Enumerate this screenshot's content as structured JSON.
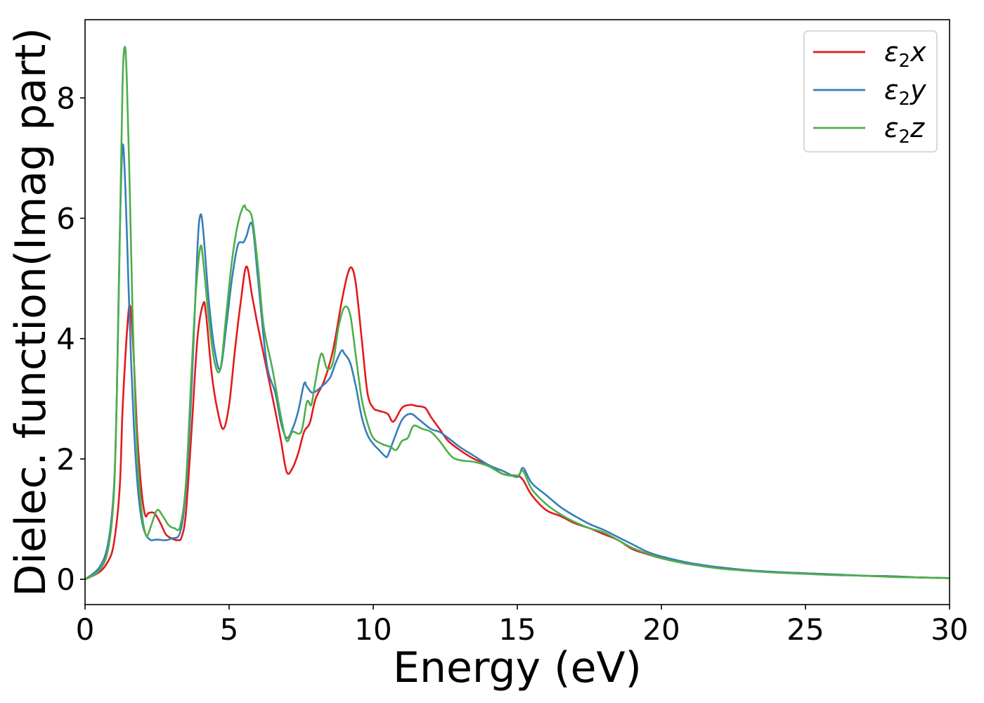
{
  "chart_data": {
    "type": "line",
    "xlabel": "Energy (eV)",
    "ylabel": "Dielec. function(Imag part)",
    "xlim": [
      0,
      30
    ],
    "ylim": [
      -0.42,
      9.3
    ],
    "xticks": [
      0,
      5,
      10,
      15,
      20,
      25,
      30
    ],
    "yticks": [
      0,
      2,
      4,
      6,
      8
    ],
    "grid": false,
    "legend_position": "top-right",
    "series": [
      {
        "name": "ε₂x",
        "legend": {
          "base": "ε",
          "sub": "2",
          "var": "x"
        },
        "color": "#e41a1c",
        "x": [
          0,
          0.5,
          0.8,
          1.0,
          1.2,
          1.3,
          1.4,
          1.5,
          1.55,
          1.6,
          1.7,
          1.8,
          1.9,
          2.0,
          2.1,
          2.2,
          2.4,
          2.6,
          2.8,
          3.0,
          3.2,
          3.35,
          3.5,
          3.7,
          3.9,
          4.1,
          4.2,
          4.4,
          4.6,
          4.8,
          5.0,
          5.2,
          5.4,
          5.6,
          5.8,
          6.0,
          6.3,
          6.6,
          6.8,
          7.0,
          7.2,
          7.4,
          7.6,
          7.8,
          8.0,
          8.3,
          8.6,
          8.9,
          9.1,
          9.25,
          9.4,
          9.6,
          9.8,
          10.0,
          10.2,
          10.5,
          10.7,
          11.0,
          11.3,
          11.5,
          11.8,
          12.0,
          12.3,
          12.6,
          13.0,
          13.5,
          14.0,
          14.5,
          15.0,
          15.2,
          15.5,
          16.0,
          16.5,
          17.0,
          17.5,
          18.0,
          18.5,
          19.0,
          19.5,
          20.0,
          21.0,
          22.0,
          23.0,
          24.0,
          25.0,
          26.0,
          27.0,
          28.0,
          29.0,
          30.0
        ],
        "values": [
          0.0,
          0.12,
          0.3,
          0.6,
          1.5,
          2.8,
          3.7,
          4.4,
          4.55,
          4.4,
          3.6,
          2.5,
          1.8,
          1.3,
          1.05,
          1.1,
          1.1,
          0.95,
          0.75,
          0.68,
          0.65,
          0.7,
          1.1,
          2.5,
          4.0,
          4.58,
          4.4,
          3.4,
          2.8,
          2.5,
          2.9,
          3.8,
          4.6,
          5.2,
          4.7,
          4.2,
          3.5,
          2.8,
          2.3,
          1.78,
          1.85,
          2.1,
          2.45,
          2.6,
          3.0,
          3.3,
          3.8,
          4.6,
          5.05,
          5.18,
          4.9,
          4.0,
          3.1,
          2.85,
          2.8,
          2.75,
          2.62,
          2.85,
          2.9,
          2.88,
          2.85,
          2.7,
          2.5,
          2.3,
          2.15,
          2.0,
          1.9,
          1.75,
          1.72,
          1.65,
          1.4,
          1.15,
          1.05,
          0.93,
          0.85,
          0.75,
          0.65,
          0.5,
          0.42,
          0.35,
          0.25,
          0.2,
          0.15,
          0.12,
          0.1,
          0.08,
          0.06,
          0.05,
          0.03,
          0.02
        ]
      },
      {
        "name": "ε₂y",
        "legend": {
          "base": "ε",
          "sub": "2",
          "var": "y"
        },
        "color": "#377eb8",
        "x": [
          0,
          0.5,
          0.8,
          1.0,
          1.1,
          1.2,
          1.3,
          1.4,
          1.5,
          1.6,
          1.7,
          1.8,
          1.9,
          2.0,
          2.1,
          2.2,
          2.3,
          2.5,
          2.8,
          3.0,
          3.3,
          3.5,
          3.7,
          3.9,
          4.0,
          4.1,
          4.3,
          4.5,
          4.7,
          4.9,
          5.1,
          5.3,
          5.5,
          5.6,
          5.8,
          6.0,
          6.3,
          6.6,
          6.8,
          7.0,
          7.2,
          7.4,
          7.6,
          7.7,
          7.9,
          8.2,
          8.5,
          8.7,
          8.9,
          9.0,
          9.2,
          9.4,
          9.6,
          9.8,
          10.0,
          10.2,
          10.4,
          10.5,
          10.7,
          11.0,
          11.3,
          11.6,
          12.0,
          12.3,
          12.6,
          13.0,
          13.5,
          14.0,
          14.5,
          15.0,
          15.2,
          15.5,
          16.0,
          16.5,
          17.0,
          17.5,
          18.0,
          18.5,
          19.0,
          19.5,
          20.0,
          21.0,
          22.0,
          23.0,
          24.0,
          25.0,
          26.0,
          27.0,
          28.0,
          29.0,
          30.0
        ],
        "values": [
          0.0,
          0.2,
          0.6,
          1.5,
          3.0,
          5.6,
          7.2,
          6.5,
          5.0,
          3.6,
          2.5,
          1.7,
          1.2,
          0.9,
          0.75,
          0.68,
          0.65,
          0.66,
          0.65,
          0.68,
          0.78,
          1.5,
          3.2,
          5.5,
          6.05,
          5.8,
          4.6,
          3.8,
          3.5,
          4.2,
          5.0,
          5.55,
          5.6,
          5.7,
          5.9,
          5.0,
          3.6,
          3.1,
          2.6,
          2.35,
          2.5,
          2.8,
          3.25,
          3.2,
          3.1,
          3.2,
          3.35,
          3.6,
          3.8,
          3.75,
          3.6,
          3.2,
          2.7,
          2.4,
          2.25,
          2.15,
          2.05,
          2.05,
          2.3,
          2.65,
          2.75,
          2.65,
          2.5,
          2.45,
          2.35,
          2.2,
          2.05,
          1.9,
          1.8,
          1.7,
          1.85,
          1.6,
          1.4,
          1.2,
          1.05,
          0.92,
          0.82,
          0.7,
          0.58,
          0.46,
          0.38,
          0.27,
          0.2,
          0.15,
          0.12,
          0.1,
          0.08,
          0.06,
          0.05,
          0.03,
          0.02
        ]
      },
      {
        "name": "ε₂z",
        "legend": {
          "base": "ε",
          "sub": "2",
          "var": "z"
        },
        "color": "#4daf4a",
        "x": [
          0,
          0.5,
          0.8,
          1.0,
          1.1,
          1.2,
          1.3,
          1.38,
          1.45,
          1.55,
          1.65,
          1.75,
          1.85,
          1.95,
          2.05,
          2.15,
          2.3,
          2.5,
          2.7,
          2.9,
          3.1,
          3.3,
          3.5,
          3.7,
          3.85,
          4.0,
          4.1,
          4.3,
          4.5,
          4.7,
          4.9,
          5.1,
          5.3,
          5.5,
          5.6,
          5.8,
          6.0,
          6.2,
          6.5,
          6.8,
          7.0,
          7.2,
          7.5,
          7.7,
          7.85,
          8.0,
          8.2,
          8.4,
          8.6,
          8.8,
          9.0,
          9.2,
          9.4,
          9.6,
          9.8,
          10.0,
          10.3,
          10.6,
          10.8,
          11.0,
          11.2,
          11.4,
          11.7,
          12.0,
          12.3,
          12.7,
          13.0,
          13.5,
          14.0,
          14.5,
          15.0,
          15.2,
          15.5,
          16.0,
          16.5,
          17.0,
          17.5,
          18.0,
          18.5,
          19.0,
          19.5,
          20.0,
          21.0,
          22.0,
          23.0,
          24.0,
          25.0,
          26.0,
          27.0,
          28.0,
          29.0,
          30.0
        ],
        "values": [
          0.0,
          0.15,
          0.5,
          1.4,
          3.0,
          5.5,
          8.2,
          8.85,
          8.3,
          6.5,
          4.4,
          2.8,
          1.8,
          1.2,
          0.85,
          0.72,
          0.9,
          1.15,
          1.05,
          0.9,
          0.85,
          0.88,
          1.6,
          3.5,
          4.8,
          5.52,
          5.3,
          4.3,
          3.6,
          3.5,
          4.4,
          5.3,
          5.9,
          6.2,
          6.15,
          6.0,
          5.2,
          4.2,
          3.5,
          2.7,
          2.3,
          2.45,
          2.45,
          2.95,
          2.9,
          3.3,
          3.75,
          3.5,
          3.6,
          4.2,
          4.52,
          4.4,
          3.7,
          3.0,
          2.6,
          2.35,
          2.25,
          2.2,
          2.15,
          2.3,
          2.35,
          2.55,
          2.5,
          2.45,
          2.3,
          2.05,
          1.98,
          1.95,
          1.88,
          1.75,
          1.72,
          1.8,
          1.5,
          1.25,
          1.08,
          0.95,
          0.85,
          0.78,
          0.65,
          0.52,
          0.43,
          0.35,
          0.25,
          0.18,
          0.14,
          0.11,
          0.09,
          0.07,
          0.06,
          0.04,
          0.03,
          0.02
        ]
      }
    ]
  }
}
